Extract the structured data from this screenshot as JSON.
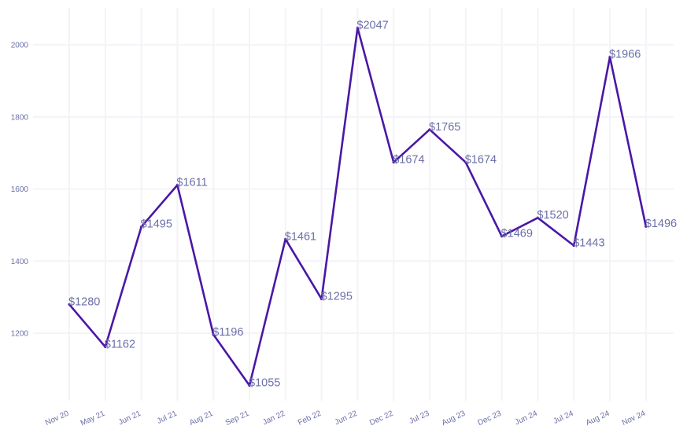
{
  "chart_data": {
    "type": "line",
    "title": "",
    "xlabel": "",
    "ylabel": "",
    "categories": [
      "Nov 20",
      "May 21",
      "Jun 21",
      "Jul 21",
      "Aug 21",
      "Sep 21",
      "Jan 22",
      "Feb 22",
      "Jun 22",
      "Dec 22",
      "Jul 23",
      "Aug 23",
      "Dec 23",
      "Jun 24",
      "Jul 24",
      "Aug 24",
      "Nov 24"
    ],
    "values": [
      1280,
      1162,
      1495,
      1611,
      1196,
      1055,
      1461,
      1295,
      2047,
      1674,
      1765,
      1674,
      1469,
      1520,
      1443,
      1966,
      1496
    ],
    "data_labels": [
      "$1280",
      "$1162",
      "$1495",
      "$1611",
      "$1196",
      "$1055",
      "$1461",
      "$1295",
      "$2047",
      "$1674",
      "$1765",
      "$1674",
      "$1469",
      "$1520",
      "$1443",
      "$1966",
      "$1496"
    ],
    "ylim": [
      1020,
      2080
    ],
    "yticks": [
      1200,
      1400,
      1600,
      1800,
      2000
    ],
    "grid": true,
    "legend": "none",
    "colors": {
      "line": "#4a17a6",
      "label": "#6b6fa8",
      "tick": "#6b6fa8",
      "grid": "#f4f4f8"
    }
  }
}
